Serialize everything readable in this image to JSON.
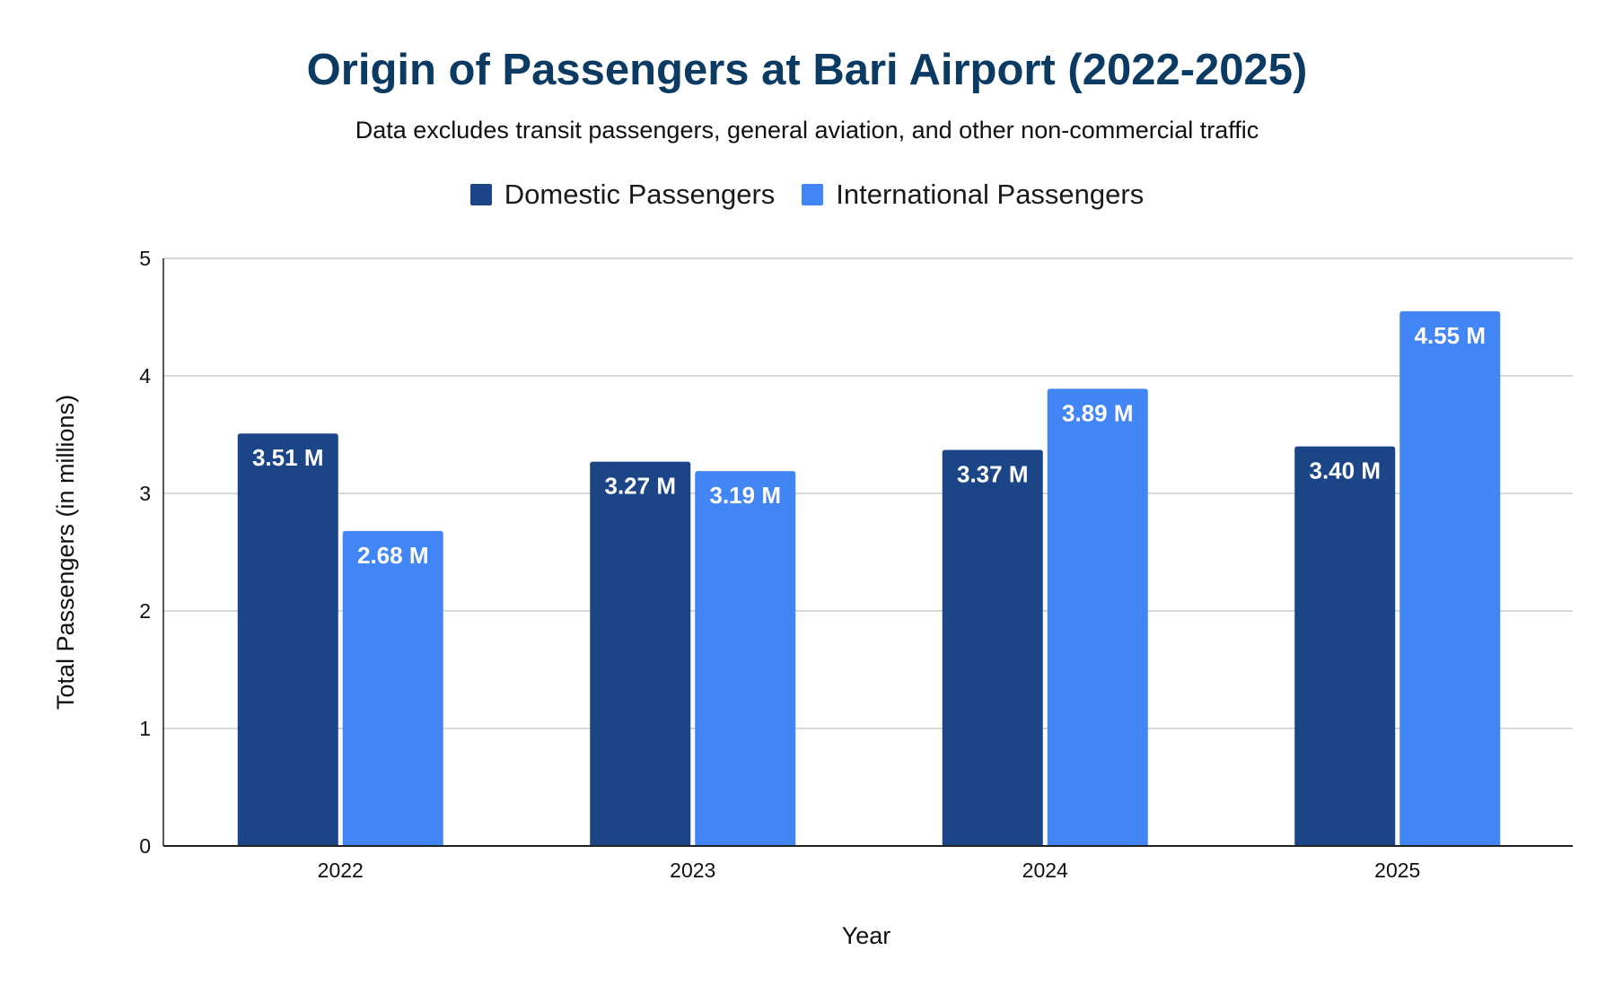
{
  "chart_data": {
    "type": "bar",
    "title": "Origin of Passengers at Bari Airport (2022-2025)",
    "subtitle": "Data excludes transit passengers, general aviation, and other non-commercial traffic",
    "xlabel": "Year",
    "ylabel": "Total Passengers (in millions)",
    "categories": [
      "2022",
      "2023",
      "2024",
      "2025"
    ],
    "ylim": [
      0,
      5
    ],
    "yticks": [
      "0",
      "1",
      "2",
      "3",
      "4",
      "5"
    ],
    "grid": true,
    "legend_position": "top-center",
    "series": [
      {
        "name": "Domestic Passengers",
        "color": "#1c4587",
        "values": [
          3.51,
          3.27,
          3.37,
          3.4
        ],
        "labels": [
          "3.51 M",
          "3.27 M",
          "3.37 M",
          "3.40 M"
        ]
      },
      {
        "name": "International Passengers",
        "color": "#4285f4",
        "values": [
          2.68,
          3.19,
          3.89,
          4.55
        ],
        "labels": [
          "2.68 M",
          "3.19 M",
          "3.89 M",
          "4.55 M"
        ]
      }
    ]
  },
  "colors": {
    "title": "#0b3a63",
    "grid": "#cccccc",
    "axis": "#222222"
  }
}
